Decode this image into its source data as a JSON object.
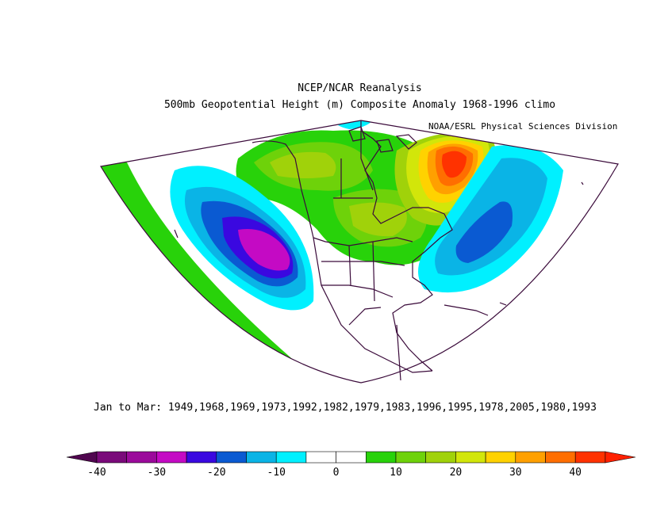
{
  "header": {
    "title": "NCEP/NCAR Reanalysis",
    "subtitle": "500mb Geopotential Height (m) Composite Anomaly 1968-1996 climo",
    "credit": "NOAA/ESRL Physical Sciences Division"
  },
  "composite": {
    "label": "Jan to Mar: 1949,1968,1969,1973,1992,1982,1979,1983,1996,1995,1978,2005,1980,1993"
  },
  "colorbar": {
    "tick_labels": [
      "-40",
      "-30",
      "-20",
      "-10",
      "0",
      "10",
      "20",
      "30",
      "40"
    ],
    "colors": [
      "#7a0a7a",
      "#9b0a9b",
      "#c40ac4",
      "#3a08e0",
      "#0a5ad2",
      "#0ab4e6",
      "#00f0ff",
      "#ffffff",
      "#ffffff",
      "#28d20a",
      "#6ed20a",
      "#a0d20a",
      "#d2e60a",
      "#ffd200",
      "#ffa000",
      "#ff6e00",
      "#ff3200"
    ],
    "under_color": "#50064f",
    "over_color": "#ff2000"
  }
}
